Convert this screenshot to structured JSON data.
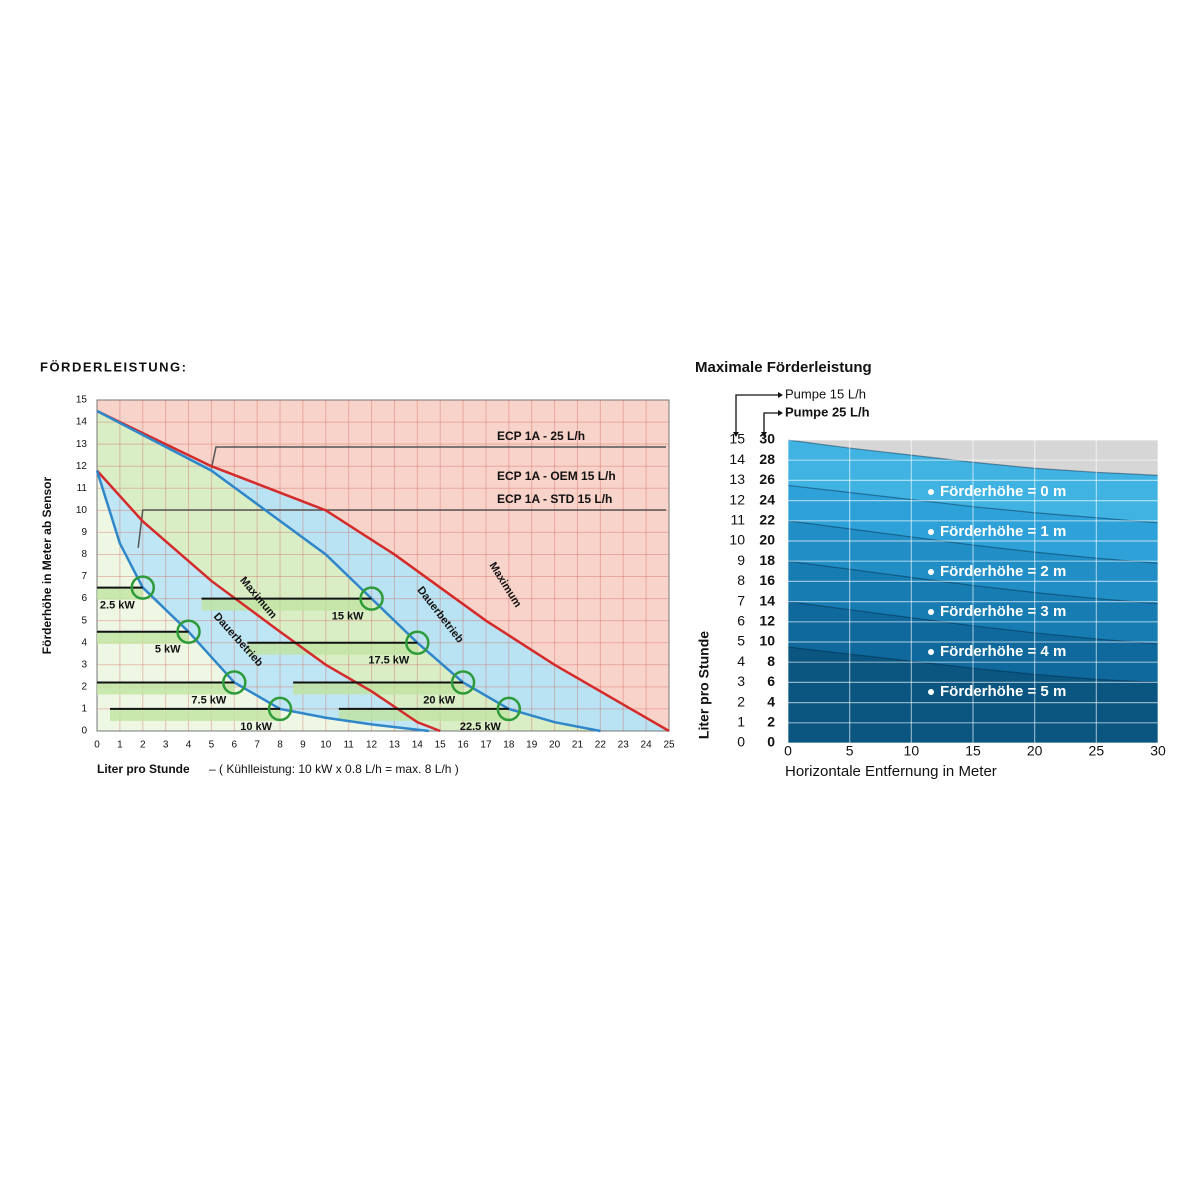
{
  "chart_data": [
    {
      "type": "line",
      "title": "FÖRDERLEISTUNG:",
      "x_label": "Liter pro Stunde",
      "x_note": "– ( Kühlleistung: 10 kW x 0.8 L/h = max. 8 L/h )",
      "y_label": "Förderhöhe in Meter ab Sensor",
      "xlim": [
        0,
        25
      ],
      "ylim": [
        0,
        15
      ],
      "xticks": [
        0,
        1,
        2,
        3,
        4,
        5,
        6,
        7,
        8,
        9,
        10,
        11,
        12,
        13,
        14,
        15,
        16,
        17,
        18,
        19,
        20,
        21,
        22,
        23,
        24,
        25
      ],
      "yticks": [
        0,
        1,
        2,
        3,
        4,
        5,
        6,
        7,
        8,
        9,
        10,
        11,
        12,
        13,
        14,
        15
      ],
      "grid": true,
      "series": [
        {
          "name": "Maximum",
          "color": "#d42a2a",
          "x": [
            0,
            5,
            10,
            13,
            15,
            17,
            20,
            22,
            25
          ],
          "values": [
            14.5,
            12,
            10,
            8,
            6.5,
            5,
            3,
            1.8,
            0
          ]
        },
        {
          "name": "Dauerbetrieb",
          "color": "#2f86c8",
          "x": [
            0,
            5,
            10,
            12,
            14,
            16,
            18,
            20,
            22
          ],
          "values": [
            14.5,
            11.8,
            8,
            6,
            4,
            2.2,
            1,
            0.4,
            0
          ]
        },
        {
          "name": "Maximum",
          "color": "#d42a2a",
          "x": [
            0,
            2,
            5,
            8,
            10,
            12,
            14,
            15
          ],
          "values": [
            11.8,
            9.5,
            6.8,
            4.5,
            3,
            1.8,
            0.4,
            0
          ]
        },
        {
          "name": "Dauerbetrieb",
          "color": "#2f86c8",
          "x": [
            0,
            1,
            2,
            4,
            6,
            8,
            10,
            12,
            14.5
          ],
          "values": [
            11.8,
            8.5,
            6.5,
            4.5,
            2.2,
            1,
            0.6,
            0.3,
            0
          ]
        }
      ],
      "points": [
        {
          "label": "2.5 kW",
          "x": 2,
          "y": 6.5
        },
        {
          "label": "5 kW",
          "x": 4,
          "y": 4.5
        },
        {
          "label": "7.5 kW",
          "x": 6,
          "y": 2.2
        },
        {
          "label": "10 kW",
          "x": 8,
          "y": 1
        },
        {
          "label": "15 kW",
          "x": 12,
          "y": 6
        },
        {
          "label": "17.5 kW",
          "x": 14,
          "y": 4
        },
        {
          "label": "20 kW",
          "x": 16,
          "y": 2.2
        },
        {
          "label": "22.5 kW",
          "x": 18,
          "y": 1
        }
      ],
      "annotations": [
        "ECP 1A - 25 L/h",
        "ECP 1A - OEM 15 L/h",
        "ECP 1A - STD 15 L/h"
      ]
    },
    {
      "type": "area",
      "title": "Maximale Förderleistung",
      "y_label": "Liter pro Stunde",
      "x_label": "Horizontale Entfernung in Meter",
      "y_axis_title": "Pumpe 15 L/h",
      "y2_axis_title": "Pumpe 25 L/h",
      "x": [
        0,
        5,
        10,
        15,
        20,
        25,
        30
      ],
      "xlim": [
        0,
        30
      ],
      "xticks": [
        0,
        5,
        10,
        15,
        20,
        25,
        30
      ],
      "ylim": [
        0,
        15
      ],
      "yticks": [
        0,
        1,
        2,
        3,
        4,
        5,
        6,
        7,
        8,
        9,
        10,
        11,
        12,
        13,
        14,
        15
      ],
      "y2lim": [
        0,
        30
      ],
      "y2ticks": [
        0,
        2,
        4,
        6,
        8,
        10,
        12,
        14,
        16,
        18,
        20,
        22,
        24,
        26,
        28,
        30
      ],
      "grid": true,
      "series": [
        {
          "name": "Förderhöhe = 0 m",
          "color": "#40b3e3",
          "axis": "y2",
          "values": [
            30,
            29.2,
            28.5,
            27.8,
            27.2,
            26.8,
            26.5
          ]
        },
        {
          "name": "Förderhöhe = 1 m",
          "color": "#2ea2d8",
          "axis": "y2",
          "values": [
            25.5,
            24.8,
            24.1,
            23.4,
            22.8,
            22.3,
            21.8
          ]
        },
        {
          "name": "Förderhöhe = 2 m",
          "color": "#218fc6",
          "axis": "y2",
          "values": [
            22,
            21.2,
            20.4,
            19.6,
            18.9,
            18.3,
            17.8
          ]
        },
        {
          "name": "Förderhöhe = 3 m",
          "color": "#177cb2",
          "axis": "y2",
          "values": [
            18,
            17.2,
            16.4,
            15.6,
            14.9,
            14.3,
            13.8
          ]
        },
        {
          "name": "Förderhöhe = 4 m",
          "color": "#0f699c",
          "axis": "y2",
          "values": [
            14,
            13.2,
            12.4,
            11.6,
            10.9,
            10.3,
            9.8
          ]
        },
        {
          "name": "Förderhöhe = 5 m",
          "color": "#0a5680",
          "axis": "y2",
          "values": [
            9.5,
            8.8,
            8.1,
            7.4,
            6.8,
            6.3,
            6
          ]
        }
      ]
    }
  ]
}
